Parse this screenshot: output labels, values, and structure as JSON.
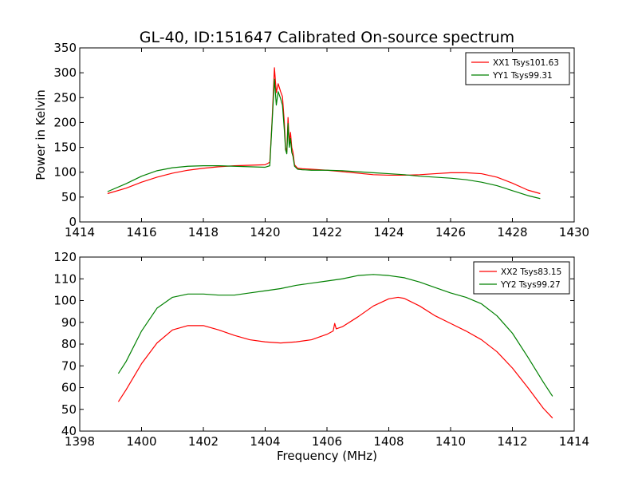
{
  "title": "GL-40, ID:151647 Calibrated On-source spectrum",
  "chart_data": [
    {
      "type": "line",
      "name": "top",
      "xlim": [
        1414,
        1430
      ],
      "ylim": [
        0,
        350
      ],
      "xticks": [
        1414,
        1416,
        1418,
        1420,
        1422,
        1424,
        1426,
        1428,
        1430
      ],
      "yticks": [
        0,
        50,
        100,
        150,
        200,
        250,
        300,
        350
      ],
      "xlabel": "",
      "ylabel": "Power in Kelvin",
      "legend_position": "top-right",
      "series": [
        {
          "name": "XX1 Tsys101.63",
          "color": "#ff0000",
          "x": [
            1414.9,
            1415.5,
            1416.0,
            1416.5,
            1417.0,
            1417.5,
            1418.0,
            1418.5,
            1419.0,
            1419.5,
            1420.0,
            1420.15,
            1420.22,
            1420.3,
            1420.36,
            1420.42,
            1420.5,
            1420.56,
            1420.62,
            1420.66,
            1420.7,
            1420.74,
            1420.78,
            1420.82,
            1420.86,
            1420.9,
            1420.95,
            1421.05,
            1421.2,
            1421.5,
            1422.0,
            1422.5,
            1423.0,
            1423.5,
            1424.0,
            1424.5,
            1425.0,
            1425.5,
            1426.0,
            1426.5,
            1427.0,
            1427.5,
            1428.0,
            1428.5,
            1428.9
          ],
          "y": [
            57,
            68,
            80,
            90,
            98,
            104,
            108,
            111,
            113,
            114,
            115,
            120,
            200,
            310,
            260,
            278,
            262,
            252,
            200,
            150,
            140,
            210,
            160,
            180,
            150,
            140,
            115,
            108,
            107,
            106,
            104,
            101,
            98,
            95,
            94,
            94,
            95,
            97,
            99,
            99,
            97,
            90,
            78,
            64,
            57
          ]
        },
        {
          "name": "YY1 Tsys99.31",
          "color": "#008000",
          "x": [
            1414.9,
            1415.5,
            1416.0,
            1416.5,
            1417.0,
            1417.5,
            1418.0,
            1418.5,
            1419.0,
            1419.5,
            1420.0,
            1420.15,
            1420.22,
            1420.3,
            1420.36,
            1420.42,
            1420.5,
            1420.56,
            1420.62,
            1420.66,
            1420.7,
            1420.74,
            1420.78,
            1420.82,
            1420.86,
            1420.9,
            1420.95,
            1421.05,
            1421.2,
            1421.5,
            1422.0,
            1422.5,
            1423.0,
            1423.5,
            1424.0,
            1424.5,
            1425.0,
            1425.5,
            1426.0,
            1426.5,
            1427.0,
            1427.5,
            1428.0,
            1428.5,
            1428.9
          ],
          "y": [
            61,
            77,
            92,
            103,
            109,
            112,
            113,
            113,
            112,
            111,
            110,
            113,
            195,
            287,
            235,
            262,
            248,
            235,
            185,
            145,
            137,
            198,
            150,
            168,
            140,
            132,
            112,
            106,
            105,
            104,
            104,
            103,
            101,
            99,
            97,
            95,
            92,
            90,
            88,
            85,
            80,
            73,
            63,
            53,
            47
          ]
        }
      ]
    },
    {
      "type": "line",
      "name": "bottom",
      "xlim": [
        1398,
        1414
      ],
      "ylim": [
        40,
        120
      ],
      "xticks": [
        1398,
        1400,
        1402,
        1404,
        1406,
        1408,
        1410,
        1412,
        1414
      ],
      "yticks": [
        40,
        50,
        60,
        70,
        80,
        90,
        100,
        110,
        120
      ],
      "xlabel": "Frequency (MHz)",
      "ylabel": "",
      "legend_position": "top-right",
      "series": [
        {
          "name": "XX2 Tsys83.15",
          "color": "#ff0000",
          "x": [
            1399.25,
            1399.5,
            1400.0,
            1400.5,
            1401.0,
            1401.5,
            1402.0,
            1402.5,
            1403.0,
            1403.5,
            1404.0,
            1404.5,
            1405.0,
            1405.5,
            1406.0,
            1406.2,
            1406.25,
            1406.3,
            1406.5,
            1407.0,
            1407.5,
            1408.0,
            1408.3,
            1408.5,
            1409.0,
            1409.5,
            1410.0,
            1410.5,
            1411.0,
            1411.5,
            1412.0,
            1412.5,
            1413.0,
            1413.3
          ],
          "y": [
            53.5,
            59,
            71,
            80.5,
            86.5,
            88.5,
            88.5,
            86.5,
            84,
            82,
            81,
            80.5,
            81,
            82,
            84.5,
            86,
            89.5,
            87,
            88,
            92.5,
            97.5,
            100.8,
            101.5,
            101,
            97.5,
            93,
            89.5,
            86,
            82,
            76.5,
            69,
            60,
            50.5,
            46
          ]
        },
        {
          "name": "YY2 Tsys99.27",
          "color": "#008000",
          "x": [
            1399.25,
            1399.5,
            1400.0,
            1400.5,
            1401.0,
            1401.5,
            1402.0,
            1402.5,
            1403.0,
            1403.5,
            1404.0,
            1404.5,
            1405.0,
            1405.5,
            1406.0,
            1406.5,
            1407.0,
            1407.5,
            1408.0,
            1408.5,
            1409.0,
            1409.5,
            1410.0,
            1410.5,
            1411.0,
            1411.5,
            1412.0,
            1412.5,
            1413.0,
            1413.3
          ],
          "y": [
            66.5,
            72,
            86,
            96.5,
            101.5,
            103,
            103,
            102.5,
            102.5,
            103.5,
            104.5,
            105.5,
            107,
            108,
            109,
            110,
            111.5,
            112,
            111.5,
            110.5,
            108.5,
            106,
            103.5,
            101.5,
            98.5,
            93,
            85,
            74,
            62.5,
            56
          ]
        }
      ]
    }
  ]
}
